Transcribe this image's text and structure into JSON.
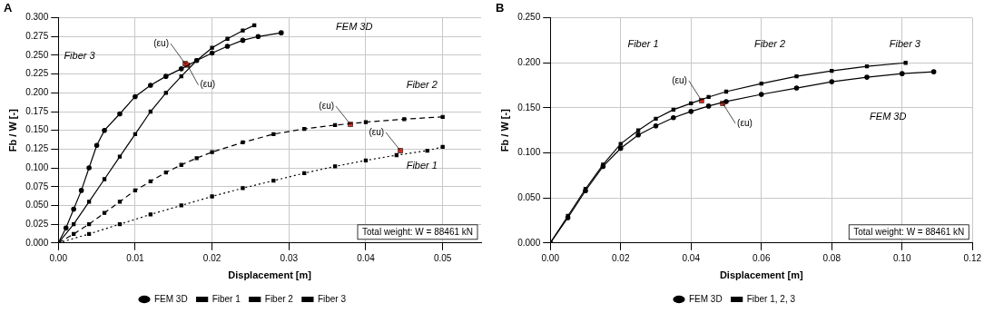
{
  "chart_data": [
    {
      "type": "line",
      "title": "A",
      "x_label": "Displacement [m]",
      "y_label": "Fb / W [-]",
      "xlim": [
        0,
        0.055
      ],
      "xticks": [
        {
          "value": 0,
          "label": "0.00"
        },
        {
          "value": 0.01,
          "label": "0.01"
        },
        {
          "value": 0.02,
          "label": "0.02"
        },
        {
          "value": 0.03,
          "label": "0.03"
        },
        {
          "value": 0.04,
          "label": "0.04"
        },
        {
          "value": 0.05,
          "label": "0.05"
        }
      ],
      "ylim": [
        0,
        0.3
      ],
      "yticks": [
        {
          "value": 0,
          "label": "0.000"
        },
        {
          "value": 0.025,
          "label": "0.025"
        },
        {
          "value": 0.05,
          "label": "0.050"
        },
        {
          "value": 0.075,
          "label": "0.075"
        },
        {
          "value": 0.1,
          "label": "0.100"
        },
        {
          "value": 0.125,
          "label": "0.125"
        },
        {
          "value": 0.15,
          "label": "0.150"
        },
        {
          "value": 0.175,
          "label": "0.175"
        },
        {
          "value": 0.2,
          "label": "0.200"
        },
        {
          "value": 0.225,
          "label": "0.225"
        },
        {
          "value": 0.25,
          "label": "0.250"
        },
        {
          "value": 0.275,
          "label": "0.275"
        },
        {
          "value": 0.3,
          "label": "0.300"
        }
      ],
      "grid": true,
      "legend": "bottom",
      "series": [
        {
          "name": "FEM 3D",
          "color": "#000000",
          "marker": "circle",
          "line_style": "solid",
          "x": [
            0,
            0.001,
            0.002,
            0.003,
            0.004,
            0.005,
            0.006,
            0.008,
            0.01,
            0.012,
            0.014,
            0.016,
            0.018,
            0.02,
            0.022,
            0.024,
            0.026,
            0.029
          ],
          "values": [
            0,
            0.02,
            0.045,
            0.07,
            0.1,
            0.13,
            0.15,
            0.172,
            0.195,
            0.21,
            0.222,
            0.232,
            0.243,
            0.253,
            0.262,
            0.27,
            0.275,
            0.28
          ]
        },
        {
          "name": "Fiber 1",
          "color": "#000000",
          "marker": "square",
          "line_style": "solid",
          "x": [
            0,
            0.002,
            0.004,
            0.006,
            0.008,
            0.01,
            0.012,
            0.014,
            0.016,
            0.018,
            0.02,
            0.022,
            0.024,
            0.0255
          ],
          "values": [
            0,
            0.025,
            0.055,
            0.085,
            0.115,
            0.145,
            0.175,
            0.2,
            0.222,
            0.243,
            0.26,
            0.272,
            0.283,
            0.29
          ]
        },
        {
          "name": "Fiber 2",
          "color": "#000000",
          "marker": "square",
          "line_style": "dashed",
          "x": [
            0,
            0.002,
            0.004,
            0.006,
            0.008,
            0.01,
            0.012,
            0.014,
            0.016,
            0.018,
            0.02,
            0.024,
            0.028,
            0.032,
            0.036,
            0.04,
            0.045,
            0.05
          ],
          "values": [
            0,
            0.012,
            0.025,
            0.04,
            0.055,
            0.07,
            0.082,
            0.094,
            0.104,
            0.113,
            0.121,
            0.134,
            0.145,
            0.152,
            0.157,
            0.161,
            0.165,
            0.168
          ]
        },
        {
          "name": "Fiber 3",
          "color": "#000000",
          "marker": "square",
          "line_style": "dotted",
          "x": [
            0,
            0.004,
            0.008,
            0.012,
            0.016,
            0.02,
            0.024,
            0.028,
            0.032,
            0.036,
            0.04,
            0.044,
            0.048,
            0.05
          ],
          "values": [
            0,
            0.012,
            0.025,
            0.038,
            0.05,
            0.062,
            0.073,
            0.083,
            0.093,
            0.102,
            0.11,
            0.117,
            0.123,
            0.128
          ]
        }
      ],
      "ultimate_points": {
        "label": "(εu)",
        "color": "#e03020",
        "marker": "square",
        "x": [
          0.0165,
          0.0168,
          0.038,
          0.0445
        ],
        "values": [
          0.239,
          0.237,
          0.158,
          0.123
        ]
      },
      "annotations": [
        "Fiber 3",
        "FEM 3D",
        "Fiber 2",
        "Fiber 1"
      ],
      "note": "Total weight: W = 88461 kN"
    },
    {
      "type": "line",
      "title": "B",
      "x_label": "Displacement [m]",
      "y_label": "Fb / W [-]",
      "xlim": [
        0,
        0.12
      ],
      "xticks": [
        {
          "value": 0,
          "label": "0.00"
        },
        {
          "value": 0.02,
          "label": "0.02"
        },
        {
          "value": 0.04,
          "label": "0.04"
        },
        {
          "value": 0.06,
          "label": "0.06"
        },
        {
          "value": 0.08,
          "label": "0.08"
        },
        {
          "value": 0.1,
          "label": "0.10"
        },
        {
          "value": 0.12,
          "label": "0.12"
        }
      ],
      "ylim": [
        0,
        0.25
      ],
      "yticks": [
        {
          "value": 0,
          "label": "0.000"
        },
        {
          "value": 0.05,
          "label": "0.050"
        },
        {
          "value": 0.1,
          "label": "0.100"
        },
        {
          "value": 0.15,
          "label": "0.150"
        },
        {
          "value": 0.2,
          "label": "0.200"
        },
        {
          "value": 0.25,
          "label": "0.250"
        }
      ],
      "grid": true,
      "legend": "bottom",
      "series": [
        {
          "name": "FEM 3D",
          "color": "#000000",
          "marker": "circle",
          "line_style": "solid",
          "x": [
            0,
            0.005,
            0.01,
            0.015,
            0.02,
            0.025,
            0.03,
            0.035,
            0.04,
            0.045,
            0.05,
            0.06,
            0.07,
            0.08,
            0.09,
            0.1,
            0.109
          ],
          "values": [
            0,
            0.028,
            0.058,
            0.085,
            0.105,
            0.12,
            0.13,
            0.139,
            0.146,
            0.152,
            0.157,
            0.165,
            0.172,
            0.179,
            0.184,
            0.188,
            0.19
          ]
        },
        {
          "name": "Fiber 1, 2, 3",
          "color": "#000000",
          "marker": "square",
          "line_style": "solid",
          "x": [
            0,
            0.005,
            0.01,
            0.015,
            0.02,
            0.025,
            0.03,
            0.035,
            0.04,
            0.045,
            0.05,
            0.06,
            0.07,
            0.08,
            0.09,
            0.101
          ],
          "values": [
            0,
            0.03,
            0.06,
            0.087,
            0.11,
            0.125,
            0.138,
            0.148,
            0.155,
            0.162,
            0.168,
            0.177,
            0.185,
            0.191,
            0.196,
            0.2
          ]
        }
      ],
      "ultimate_points": {
        "label": "(εu)",
        "color": "#e03020",
        "marker": "square",
        "x": [
          0.043,
          0.049
        ],
        "values": [
          0.158,
          0.155
        ]
      },
      "annotations": [
        "Fiber 1",
        "Fiber 2",
        "Fiber 3",
        "FEM 3D"
      ],
      "note": "Total weight: W = 88461 kN"
    }
  ]
}
